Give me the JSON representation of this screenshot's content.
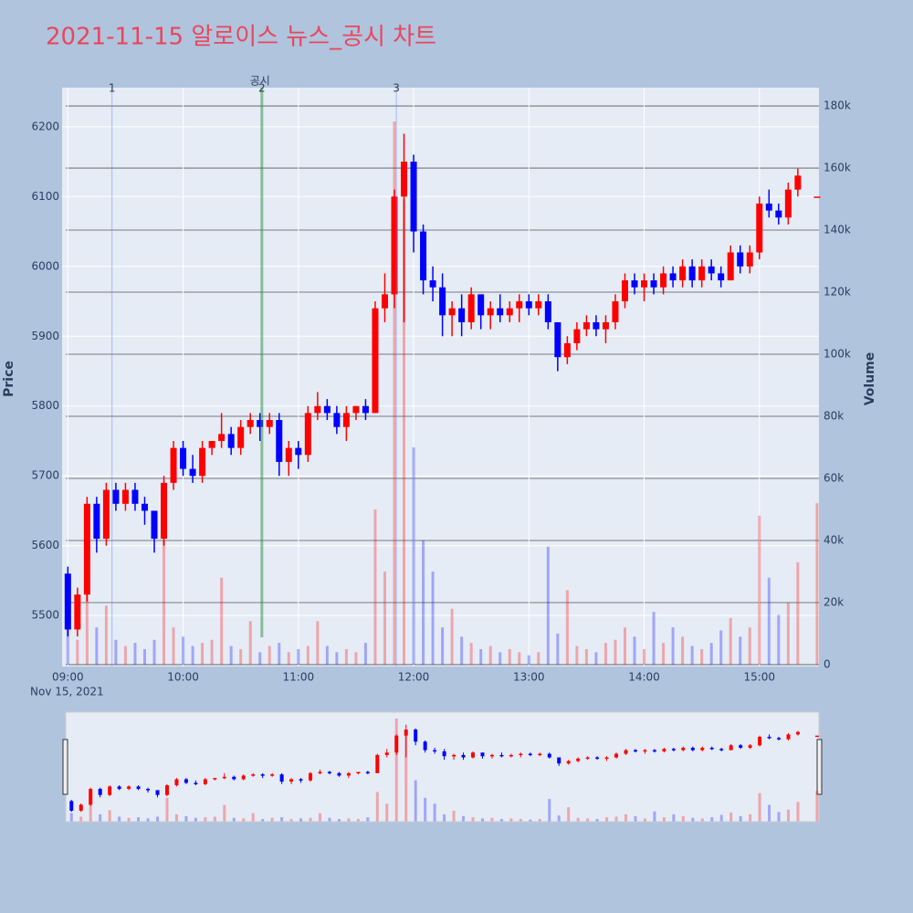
{
  "chart_data": {
    "type": "candlestick",
    "title": "2021-11-15 알로이스 뉴스_공시 차트",
    "y_label": "Price",
    "y2_label": "Volume",
    "xtick_date": "Nov 15, 2021",
    "increasing_color": "#ff0000",
    "decreasing_color": "#0000ff",
    "xlim": [
      "2021-11-15 08:57",
      "2021-11-15 15:31"
    ],
    "xticks": [
      {
        "value": "2021-11-15 09:00",
        "label": "09:00"
      },
      {
        "value": "2021-11-15 10:00",
        "label": "10:00"
      },
      {
        "value": "2021-11-15 11:00",
        "label": "11:00"
      },
      {
        "value": "2021-11-15 12:00",
        "label": "12:00"
      },
      {
        "value": "2021-11-15 13:00",
        "label": "13:00"
      },
      {
        "value": "2021-11-15 14:00",
        "label": "14:00"
      },
      {
        "value": "2021-11-15 15:00",
        "label": "15:00"
      }
    ],
    "ylim": [
      5427,
      6256
    ],
    "yticks": [
      5500,
      5600,
      5700,
      5800,
      5900,
      6000,
      6100,
      6200
    ],
    "y2lim": [
      -600,
      185900
    ],
    "y2ticks": [
      0,
      {
        "value": 20000,
        "label": "20k"
      },
      {
        "value": 40000,
        "label": "40k"
      },
      {
        "value": 60000,
        "label": "60k"
      },
      {
        "value": 80000,
        "label": "80k"
      },
      {
        "value": 100000,
        "label": "100k"
      },
      {
        "value": 120000,
        "label": "120k"
      },
      {
        "value": 140000,
        "label": "140k"
      },
      {
        "value": 160000,
        "label": "160k"
      },
      {
        "value": 180000,
        "label": "180k"
      }
    ],
    "annotations": [
      {
        "x": "2021-11-15 09:23",
        "text": "1",
        "color": "#6f7fe0"
      },
      {
        "x": "2021-11-15 10:41",
        "text": "2",
        "note": "공시",
        "color": "#2e8b3e"
      },
      {
        "x": "2021-11-15 11:51",
        "text": "3",
        "color": "#6f7fe0"
      }
    ],
    "x": [
      "2021-11-15 09:00",
      "2021-11-15 09:05",
      "2021-11-15 09:10",
      "2021-11-15 09:15",
      "2021-11-15 09:20",
      "2021-11-15 09:25",
      "2021-11-15 09:30",
      "2021-11-15 09:35",
      "2021-11-15 09:40",
      "2021-11-15 09:45",
      "2021-11-15 09:50",
      "2021-11-15 09:55",
      "2021-11-15 10:00",
      "2021-11-15 10:05",
      "2021-11-15 10:10",
      "2021-11-15 10:15",
      "2021-11-15 10:20",
      "2021-11-15 10:25",
      "2021-11-15 10:30",
      "2021-11-15 10:35",
      "2021-11-15 10:40",
      "2021-11-15 10:45",
      "2021-11-15 10:50",
      "2021-11-15 10:55",
      "2021-11-15 11:00",
      "2021-11-15 11:05",
      "2021-11-15 11:10",
      "2021-11-15 11:15",
      "2021-11-15 11:20",
      "2021-11-15 11:25",
      "2021-11-15 11:30",
      "2021-11-15 11:35",
      "2021-11-15 11:40",
      "2021-11-15 11:45",
      "2021-11-15 11:50",
      "2021-11-15 11:55",
      "2021-11-15 12:00",
      "2021-11-15 12:05",
      "2021-11-15 12:10",
      "2021-11-15 12:15",
      "2021-11-15 12:20",
      "2021-11-15 12:25",
      "2021-11-15 12:30",
      "2021-11-15 12:35",
      "2021-11-15 12:40",
      "2021-11-15 12:45",
      "2021-11-15 12:50",
      "2021-11-15 12:55",
      "2021-11-15 13:00",
      "2021-11-15 13:05",
      "2021-11-15 13:10",
      "2021-11-15 13:15",
      "2021-11-15 13:20",
      "2021-11-15 13:25",
      "2021-11-15 13:30",
      "2021-11-15 13:35",
      "2021-11-15 13:40",
      "2021-11-15 13:45",
      "2021-11-15 13:50",
      "2021-11-15 13:55",
      "2021-11-15 14:00",
      "2021-11-15 14:05",
      "2021-11-15 14:10",
      "2021-11-15 14:15",
      "2021-11-15 14:20",
      "2021-11-15 14:25",
      "2021-11-15 14:30",
      "2021-11-15 14:35",
      "2021-11-15 14:40",
      "2021-11-15 14:45",
      "2021-11-15 14:50",
      "2021-11-15 14:55",
      "2021-11-15 15:00",
      "2021-11-15 15:05",
      "2021-11-15 15:10",
      "2021-11-15 15:15",
      "2021-11-15 15:20",
      "2021-11-15 15:30"
    ],
    "open": [
      5560,
      5480,
      5530,
      5660,
      5610,
      5680,
      5660,
      5680,
      5660,
      5650,
      5610,
      5690,
      5740,
      5710,
      5700,
      5740,
      5750,
      5760,
      5740,
      5770,
      5780,
      5770,
      5780,
      5720,
      5740,
      5730,
      5790,
      5800,
      5790,
      5770,
      5790,
      5800,
      5790,
      5940,
      5960,
      6100,
      6150,
      6050,
      5980,
      5970,
      5930,
      5940,
      5920,
      5960,
      5930,
      5940,
      5930,
      5940,
      5950,
      5940,
      5950,
      5920,
      5870,
      5890,
      5910,
      5920,
      5910,
      5920,
      5950,
      5980,
      5970,
      5980,
      5970,
      5990,
      5980,
      6000,
      5980,
      6000,
      5990,
      5980,
      6020,
      6000,
      6020,
      6090,
      6080,
      6070,
      6110,
      6100
    ],
    "high": [
      5570,
      5540,
      5670,
      5670,
      5690,
      5690,
      5690,
      5690,
      5670,
      5650,
      5700,
      5750,
      5750,
      5730,
      5750,
      5750,
      5790,
      5770,
      5780,
      5790,
      5790,
      5790,
      5790,
      5750,
      5750,
      5800,
      5820,
      5810,
      5800,
      5800,
      5800,
      5810,
      5950,
      5990,
      6110,
      6190,
      6160,
      6060,
      6000,
      5990,
      5950,
      5960,
      5970,
      5960,
      5950,
      5960,
      5950,
      5960,
      5960,
      5960,
      5960,
      5920,
      5900,
      5920,
      5930,
      5930,
      5930,
      5960,
      5990,
      5990,
      5990,
      5990,
      6000,
      6000,
      6010,
      6010,
      6010,
      6010,
      6000,
      6030,
      6030,
      6030,
      6100,
      6110,
      6090,
      6120,
      6140,
      6100
    ],
    "low": [
      5470,
      5470,
      5520,
      5590,
      5600,
      5650,
      5650,
      5650,
      5630,
      5590,
      5600,
      5680,
      5700,
      5690,
      5690,
      5730,
      5740,
      5730,
      5730,
      5760,
      5750,
      5760,
      5700,
      5700,
      5710,
      5720,
      5780,
      5780,
      5760,
      5750,
      5780,
      5780,
      5790,
      5920,
      5940,
      5920,
      6020,
      5960,
      5950,
      5900,
      5900,
      5900,
      5910,
      5910,
      5910,
      5920,
      5920,
      5920,
      5930,
      5930,
      5910,
      5850,
      5860,
      5880,
      5900,
      5900,
      5890,
      5910,
      5940,
      5960,
      5950,
      5960,
      5960,
      5970,
      5970,
      5970,
      5970,
      5980,
      5970,
      5980,
      5990,
      5990,
      6010,
      6070,
      6060,
      6060,
      6100,
      6100
    ],
    "close": [
      5480,
      5530,
      5660,
      5610,
      5680,
      5660,
      5680,
      5660,
      5650,
      5610,
      5690,
      5740,
      5710,
      5700,
      5740,
      5750,
      5760,
      5740,
      5770,
      5780,
      5770,
      5780,
      5720,
      5740,
      5730,
      5790,
      5800,
      5790,
      5770,
      5790,
      5800,
      5790,
      5940,
      5960,
      6100,
      6150,
      6050,
      5980,
      5970,
      5930,
      5940,
      5920,
      5960,
      5930,
      5940,
      5930,
      5940,
      5950,
      5940,
      5950,
      5920,
      5870,
      5890,
      5910,
      5920,
      5910,
      5920,
      5950,
      5980,
      5970,
      5980,
      5970,
      5990,
      5980,
      6000,
      5980,
      6000,
      5990,
      5980,
      6020,
      6000,
      6020,
      6090,
      6080,
      6070,
      6110,
      6130,
      6100
    ],
    "volume": [
      14000,
      8000,
      30000,
      12000,
      19000,
      8000,
      6000,
      7000,
      5000,
      8000,
      40000,
      12000,
      9000,
      6000,
      7000,
      8000,
      28000,
      6000,
      5000,
      14000,
      4000,
      6000,
      7000,
      4000,
      5000,
      6000,
      14000,
      6000,
      4000,
      5000,
      4000,
      7000,
      50000,
      30000,
      175000,
      150000,
      70000,
      40000,
      30000,
      12000,
      18000,
      9000,
      7000,
      5000,
      6000,
      4000,
      5000,
      4000,
      3000,
      4000,
      38000,
      10000,
      24000,
      6000,
      5000,
      4000,
      7000,
      8000,
      12000,
      9000,
      5000,
      17000,
      7000,
      12000,
      9000,
      6000,
      5000,
      7000,
      11000,
      15000,
      9000,
      12000,
      48000,
      28000,
      16000,
      20000,
      33000,
      52000
    ]
  }
}
